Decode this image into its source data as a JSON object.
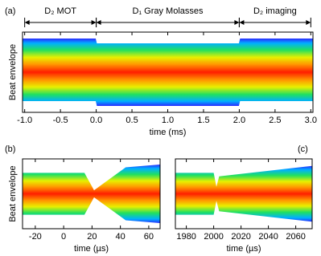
{
  "chart_data": [
    {
      "type": "density",
      "panel_label": "(a)",
      "x_label": "time (ms)",
      "y_label": "Beat envelope",
      "xlim": [
        -1.03,
        3.03
      ],
      "xticks": [
        {
          "value": -1,
          "label": "-1.0"
        },
        -0.5,
        {
          "value": 0,
          "label": "0.0"
        },
        0.5,
        {
          "value": 1,
          "label": "1.0"
        },
        1.5,
        {
          "value": 2,
          "label": "2.0"
        },
        2.5,
        {
          "value": 3,
          "label": "3.0"
        }
      ],
      "phases": [
        {
          "label": "D₂ MOT",
          "start": -1,
          "end": 0
        },
        {
          "label": "D₁ Gray Molasses",
          "start": 0,
          "end": 2
        },
        {
          "label": "D₂ imaging",
          "start": 2,
          "end": 3
        }
      ]
    },
    {
      "type": "density",
      "panel_label": "(b)",
      "x_label": "time (µs)",
      "y_label": "Beat envelope",
      "xlim": [
        -29,
        68
      ],
      "xticks": [
        -20,
        0,
        20,
        40,
        60
      ]
    },
    {
      "type": "density",
      "panel_label": "(c)",
      "x_label": "time (µs)",
      "xlim": [
        1972,
        2072
      ],
      "xticks": [
        1980,
        2000,
        2020,
        2040,
        2060
      ]
    }
  ]
}
